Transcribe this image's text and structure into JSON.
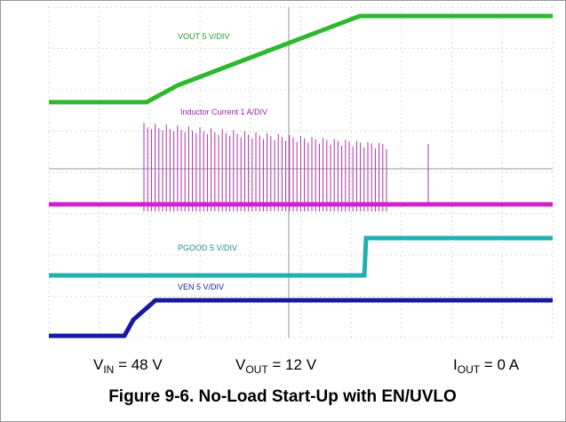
{
  "traces": [
    {
      "label": "VOUT 5 V/DIV"
    },
    {
      "label": "Inductor Current 1 A/DIV"
    },
    {
      "label": "PGOOD 5 V/DIV"
    },
    {
      "label": "VEN 5 V/DIV"
    }
  ],
  "conditions": [
    {
      "symbol": "V",
      "subscript": "IN",
      "text": " = 48 V"
    },
    {
      "symbol": "V",
      "subscript": "OUT",
      "text": " = 12 V"
    },
    {
      "symbol": "I",
      "subscript": "OUT",
      "text": " = 0 A"
    }
  ],
  "caption": "Figure 9-6. No-Load Start-Up with EN/UVLO"
}
